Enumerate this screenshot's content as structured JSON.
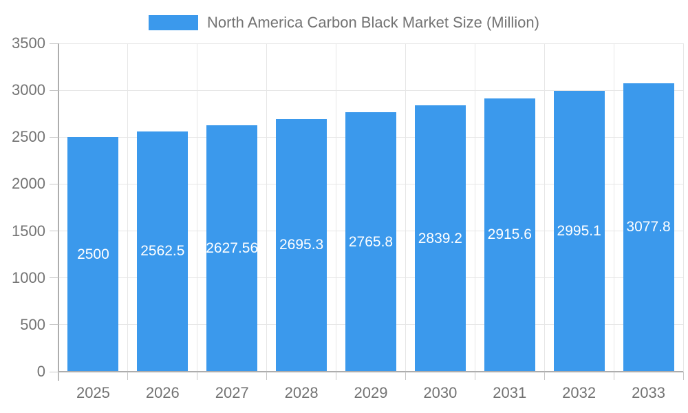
{
  "colors": {
    "bar": "#3B99EC",
    "grid": "#E6E6E6",
    "axis": "#ADADAD",
    "tick": "#C6C6C6",
    "text": "#737373",
    "value_label": "#FFFFFF"
  },
  "legend": {
    "label": "North America Carbon Black Market Size (Million)"
  },
  "chart_data": {
    "type": "bar",
    "title": "North America Carbon Black Market Size (Million)",
    "categories": [
      "2025",
      "2026",
      "2027",
      "2028",
      "2029",
      "2030",
      "2031",
      "2032",
      "2033"
    ],
    "values": [
      2500,
      2562.5,
      2627.56,
      2695.3,
      2765.8,
      2839.2,
      2915.6,
      2995.1,
      3077.8
    ],
    "value_labels": [
      "2500",
      "2562.5",
      "2627.56",
      "2695.3",
      "2765.8",
      "2839.2",
      "2915.6",
      "2995.1",
      "3077.8"
    ],
    "xlabel": "",
    "ylabel": "",
    "ylim": [
      0,
      3500
    ],
    "yticks": [
      0,
      500,
      1000,
      1500,
      2000,
      2500,
      3000,
      3500
    ],
    "grid": true,
    "legend_position": "top",
    "value_label_position": "center-of-bar"
  }
}
